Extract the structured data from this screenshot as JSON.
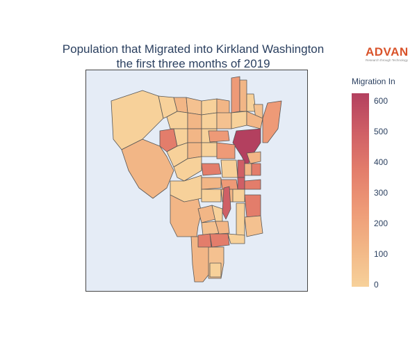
{
  "title_line1": "Population that Migrated into Kirkland Washington",
  "title_line2": "the first three months of 2019",
  "logo": {
    "name": "ADVAN",
    "tagline": "Research through Technology",
    "color": "#d9532a"
  },
  "colorbar": {
    "title": "Migration In",
    "ticks": [
      "600",
      "500",
      "400",
      "300",
      "200",
      "100",
      "0"
    ],
    "range": [
      0,
      630
    ],
    "colorscale": [
      "#f7d19a",
      "#f2b686",
      "#ee9a77",
      "#e37d6b",
      "#cf5f66",
      "#b3405f"
    ]
  },
  "map": {
    "background": "#e5ecf6",
    "border_color": "#444444"
  }
}
